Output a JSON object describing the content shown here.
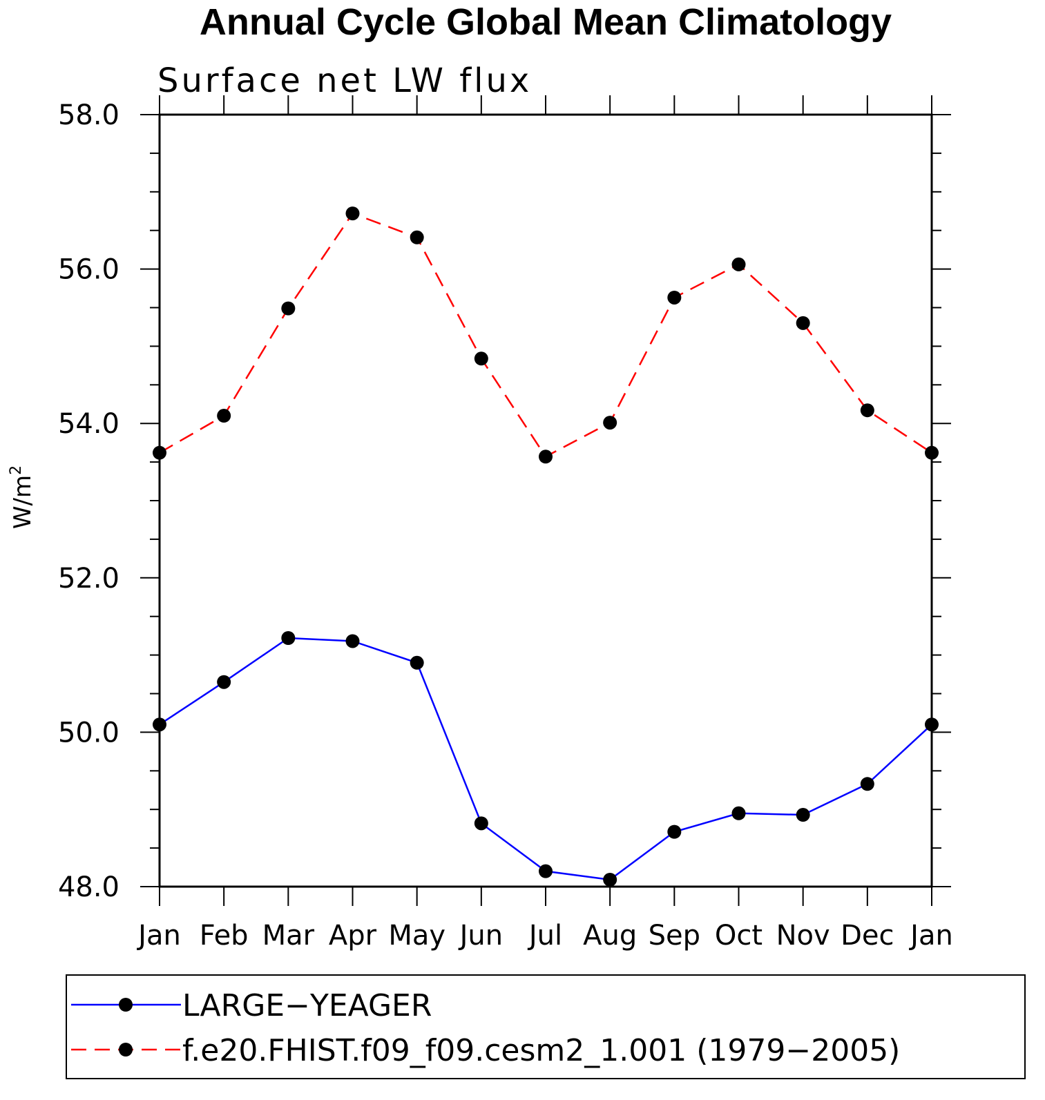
{
  "chart_data": {
    "type": "line",
    "title": "Annual Cycle Global Mean Climatology",
    "subtitle": "Surface net LW flux",
    "xlabel": "",
    "ylabel": "W/m",
    "ylabel_superscript": "2",
    "ylim": [
      48.0,
      58.0
    ],
    "yticks": [
      48.0,
      50.0,
      52.0,
      54.0,
      56.0,
      58.0
    ],
    "ytick_labels": [
      "48.0",
      "50.0",
      "52.0",
      "54.0",
      "56.0",
      "58.0"
    ],
    "y_minor_step": 0.5,
    "categories": [
      "Jan",
      "Feb",
      "Mar",
      "Apr",
      "May",
      "Jun",
      "Jul",
      "Aug",
      "Sep",
      "Oct",
      "Nov",
      "Dec",
      "Jan"
    ],
    "series": [
      {
        "name": "LARGE−YEAGER",
        "color": "#0000ff",
        "dash": "solid",
        "values": [
          50.1,
          50.65,
          51.22,
          51.18,
          50.9,
          48.82,
          48.2,
          48.09,
          48.71,
          48.95,
          48.93,
          49.33,
          50.1
        ]
      },
      {
        "name": "f.e20.FHIST.f09_f09.cesm2_1.001 (1979−2005)",
        "color": "#ff0000",
        "dash": "dashed",
        "values": [
          53.62,
          54.1,
          55.49,
          56.72,
          56.41,
          54.84,
          53.57,
          54.01,
          55.63,
          56.06,
          55.3,
          54.17,
          53.62
        ]
      }
    ],
    "marker_color": "#000000",
    "legend_position": "bottom"
  }
}
